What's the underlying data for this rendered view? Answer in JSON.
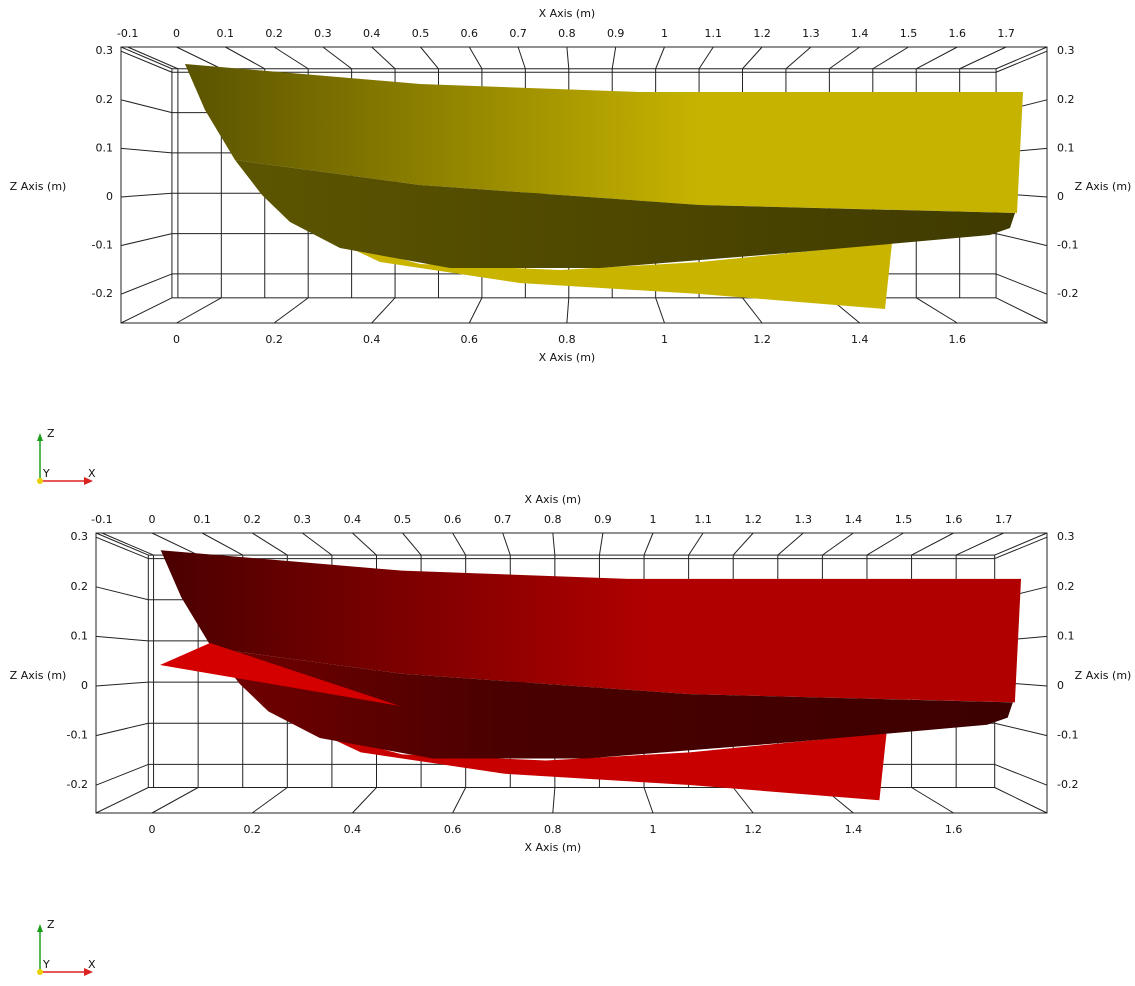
{
  "panels": [
    {
      "top_axis": {
        "title": "X Axis (m)",
        "ticks": [
          -0.1,
          0,
          0.1,
          0.2,
          0.3,
          0.4,
          0.5,
          0.6,
          0.7,
          0.8,
          0.9,
          1,
          1.1,
          1.2,
          1.3,
          1.4,
          1.5,
          1.6,
          1.7
        ]
      },
      "bottom_axis": {
        "title": "X Axis (m)",
        "ticks": [
          0,
          0.2,
          0.4,
          0.6,
          0.8,
          1,
          1.2,
          1.4,
          1.6
        ]
      },
      "left_axis": {
        "title": "Z Axis (m)",
        "ticks": [
          0.3,
          0.2,
          0.1,
          0,
          -0.1,
          -0.2
        ]
      },
      "right_axis": {
        "title": "Z Axis (m)",
        "ticks": [
          0.3,
          0.2,
          0.1,
          0,
          -0.1,
          -0.2
        ]
      },
      "triad": {
        "z": "Z",
        "y": "Y",
        "x": "X"
      }
    },
    {
      "top_axis": {
        "title": "X Axis (m)",
        "ticks": [
          -0.1,
          0,
          0.1,
          0.2,
          0.3,
          0.4,
          0.5,
          0.6,
          0.7,
          0.8,
          0.9,
          1,
          1.1,
          1.2,
          1.3,
          1.4,
          1.5,
          1.6,
          1.7
        ]
      },
      "bottom_axis": {
        "title": "X Axis (m)",
        "ticks": [
          0,
          0.2,
          0.4,
          0.6,
          0.8,
          1,
          1.2,
          1.4,
          1.6
        ]
      },
      "left_axis": {
        "title": "Z Axis (m)",
        "ticks": [
          0.3,
          0.2,
          0.1,
          0,
          -0.1,
          -0.2
        ]
      },
      "right_axis": {
        "title": "Z Axis (m)",
        "ticks": [
          0.3,
          0.2,
          0.1,
          0,
          -0.1,
          -0.2
        ]
      },
      "triad": {
        "z": "Z",
        "y": "Y",
        "x": "X"
      }
    }
  ]
}
